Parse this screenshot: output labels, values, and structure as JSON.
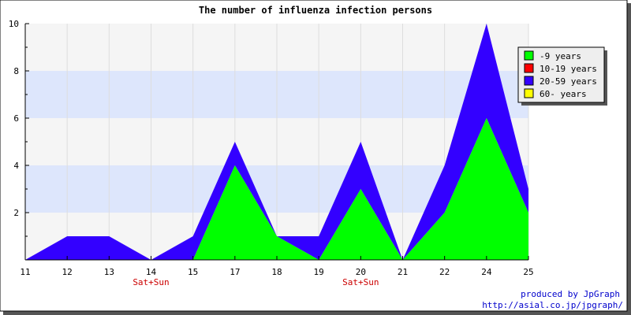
{
  "chart_data": {
    "type": "area",
    "stacked": true,
    "title": "The number of influenza infection persons",
    "categories": [
      "11",
      "12",
      "13",
      "14",
      "15",
      "17",
      "18",
      "19",
      "20",
      "21",
      "22",
      "24",
      "25"
    ],
    "weekend_labels": [
      {
        "category": "14",
        "text": "Sat+Sun"
      },
      {
        "category": "20",
        "text": "Sat+Sun"
      }
    ],
    "series": [
      {
        "name": "-9 years",
        "color": "#00ff00",
        "values": [
          0,
          0,
          0,
          0,
          0,
          4,
          1,
          0,
          3,
          0,
          2,
          6,
          2
        ]
      },
      {
        "name": "10-19 years",
        "color": "#ff0000",
        "values": [
          0,
          0,
          0,
          0,
          0,
          0,
          0,
          0,
          0,
          0,
          0,
          0,
          0
        ]
      },
      {
        "name": "20-59 years",
        "color": "#3300ff",
        "values": [
          0,
          1,
          1,
          0,
          1,
          1,
          0,
          1,
          2,
          0,
          2,
          4,
          1
        ]
      },
      {
        "name": "60- years",
        "color": "#ffff00",
        "values": [
          0,
          0,
          0,
          0,
          0,
          0,
          0,
          0,
          0,
          0,
          0,
          0,
          0
        ]
      }
    ],
    "yticks": [
      2,
      4,
      6,
      8,
      10
    ],
    "ylim": [
      0,
      10
    ],
    "grid": true,
    "band_color": "#dde6fc",
    "plot_background": "#f5f5f5",
    "legend_position": "top-right",
    "xlabel": "",
    "ylabel": ""
  },
  "footer": {
    "produced_by": "produced by JpGraph",
    "url": "http://asial.co.jp/jpgraph/"
  }
}
